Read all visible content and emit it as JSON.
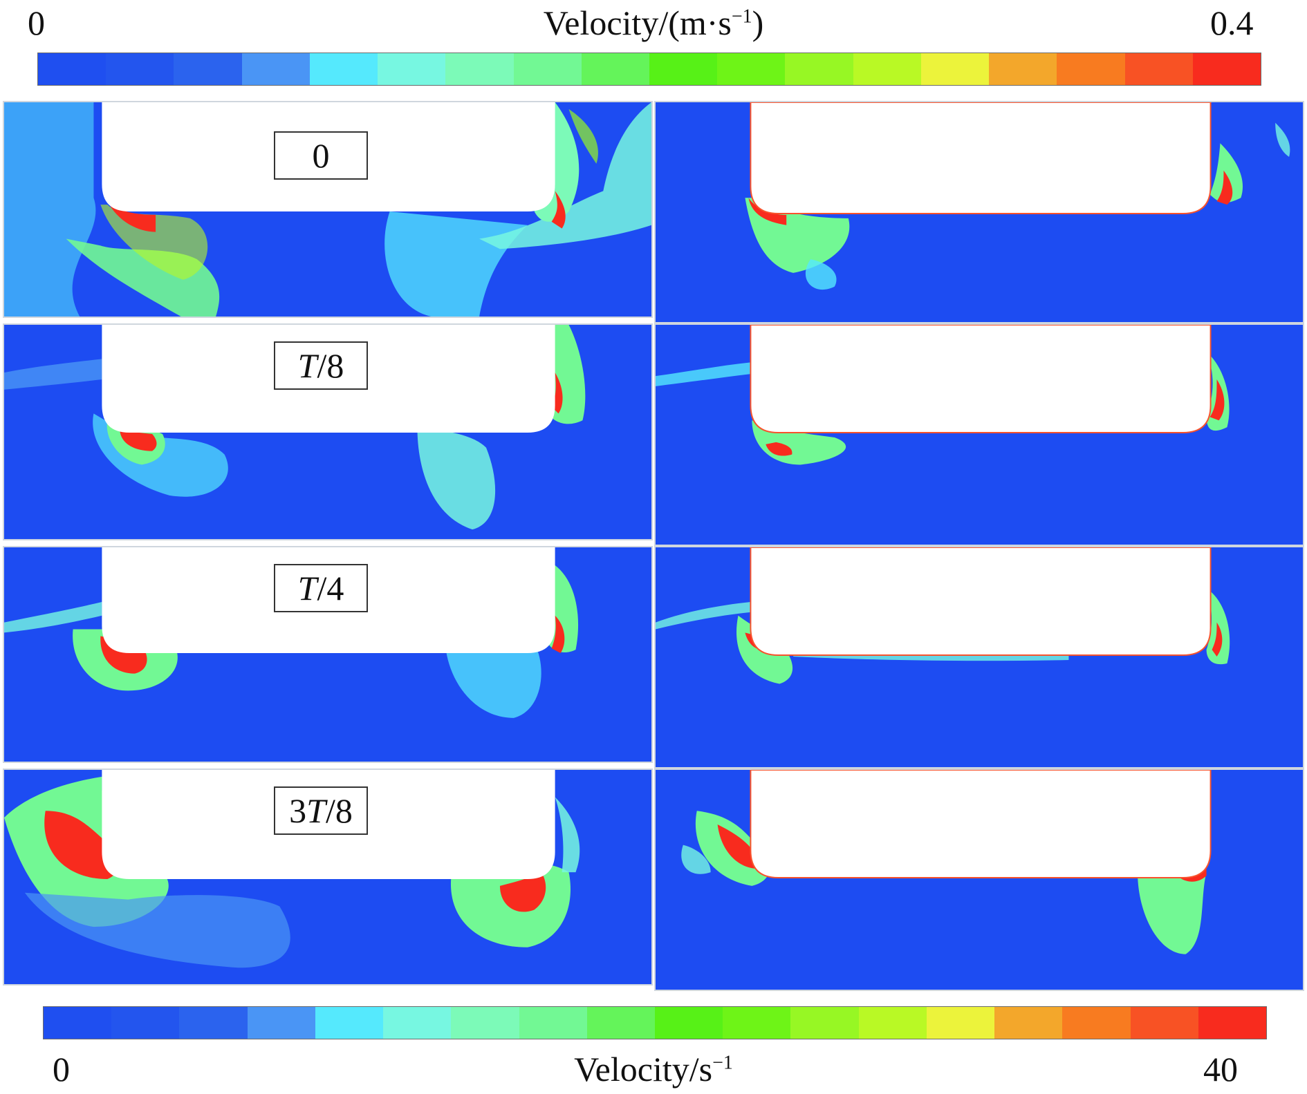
{
  "colorbar_top": {
    "min_label": "0",
    "max_label": "0.4",
    "title_main": "Velocity/(m·s",
    "title_sup": "−1",
    "title_end": ")"
  },
  "colorbar_bottom": {
    "min_label": "0",
    "max_label": "40",
    "title_main": "Velocity/s",
    "title_sup": "−1"
  },
  "colors": {
    "background_blue": "#1d4cf2",
    "scale": [
      "#1f4ff0",
      "#2355ee",
      "#2b63ee",
      "#4a95f5",
      "#55e9fd",
      "#77f7e1",
      "#7cfab8",
      "#72f894",
      "#64f45a",
      "#57f117",
      "#6ef417",
      "#97f724",
      "#b9f925",
      "#ecf33b",
      "#f3a72b",
      "#f87b20",
      "#f85224",
      "#f82b1e"
    ]
  },
  "time_labels": [
    {
      "pre": "",
      "italic": "",
      "post": "0"
    },
    {
      "pre": "",
      "italic": "T",
      "post": "/8"
    },
    {
      "pre": "",
      "italic": "T",
      "post": "/4"
    },
    {
      "pre": "3",
      "italic": "T",
      "post": "/8"
    }
  ]
}
